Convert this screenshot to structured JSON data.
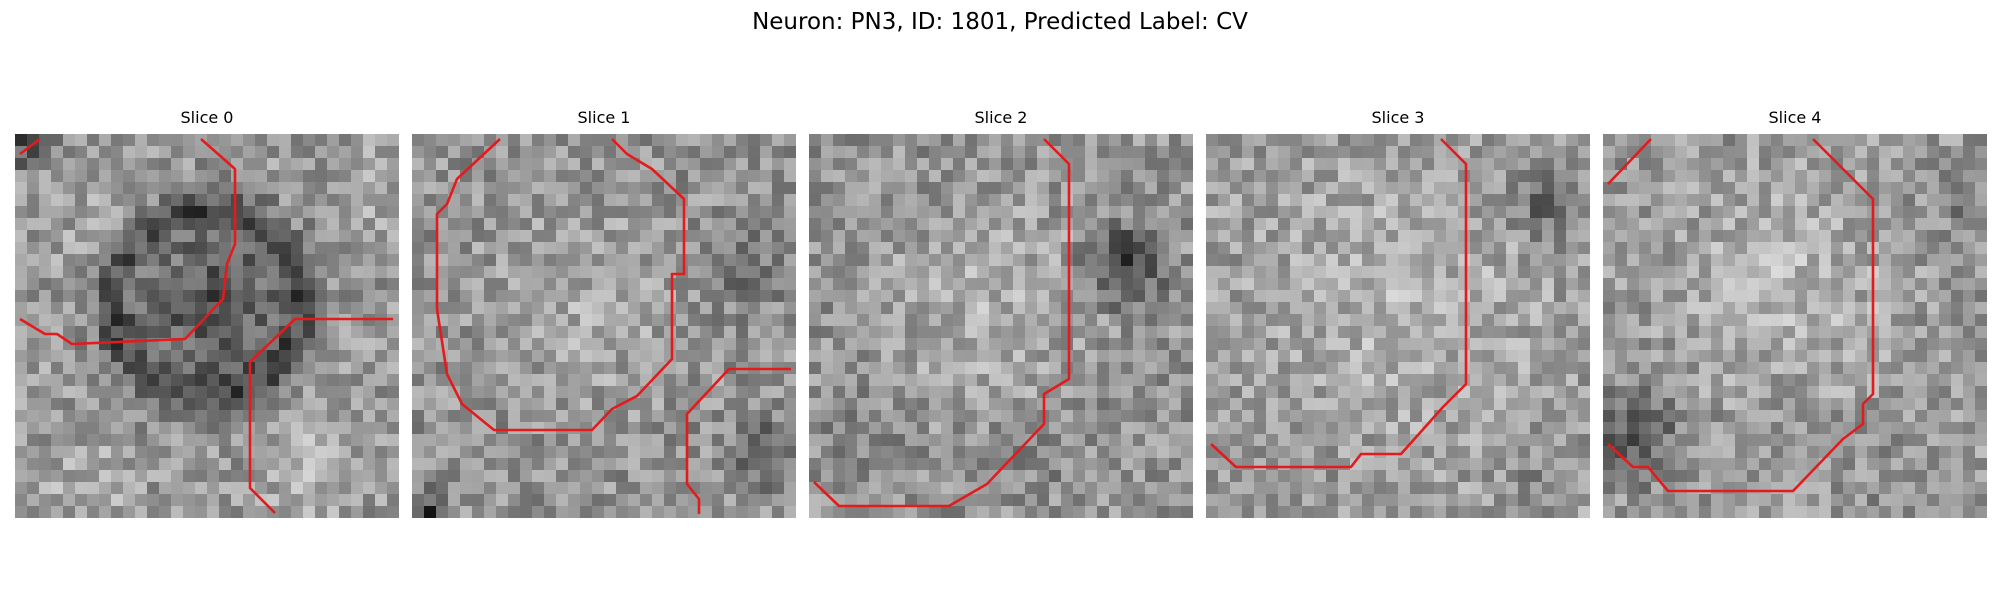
{
  "figure": {
    "title": "Neuron: PN3, ID: 1801, Predicted Label: CV",
    "contour_color": "#e41a1c",
    "colormap": "grayscale"
  },
  "slices": [
    {
      "title": "Slice 0"
    },
    {
      "title": "Slice 1"
    },
    {
      "title": "Slice 2"
    },
    {
      "title": "Slice 3"
    },
    {
      "title": "Slice 4"
    }
  ]
}
